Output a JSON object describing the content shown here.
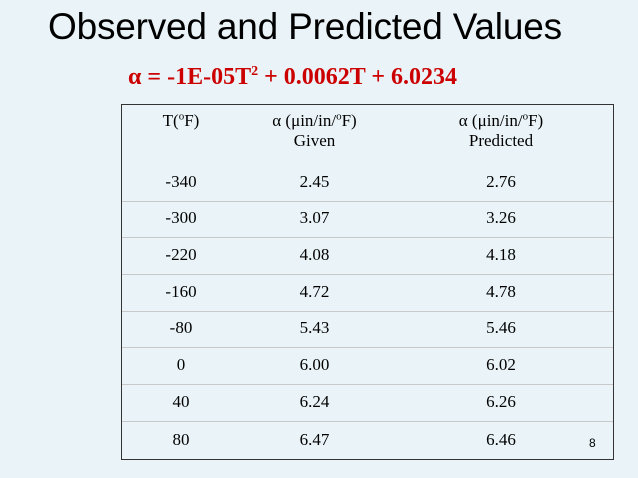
{
  "slide": {
    "title": "Observed and Predicted Values",
    "formula": {
      "prefix": "α = -1E-05T",
      "exponent": "2",
      "suffix": " + 0.0062T + 6.0234",
      "color": "#cc0000"
    },
    "table": {
      "headers": [
        {
          "line1_pre": "T(",
          "sup": "o",
          "line1_post": "F)",
          "line2": ""
        },
        {
          "line1_pre": "α (μin/in/",
          "sup": "o",
          "line1_post": "F)",
          "line2": "Given"
        },
        {
          "line1_pre": "α (μin/in/",
          "sup": "o",
          "line1_post": "F)",
          "line2": "Predicted"
        }
      ],
      "rows": [
        [
          "-340",
          "2.45",
          "2.76"
        ],
        [
          "-300",
          "3.07",
          "3.26"
        ],
        [
          "-220",
          "4.08",
          "4.18"
        ],
        [
          "-160",
          "4.72",
          "4.78"
        ],
        [
          "-80",
          "5.43",
          "5.46"
        ],
        [
          "0",
          "6.00",
          "6.02"
        ],
        [
          "40",
          "6.24",
          "6.26"
        ],
        [
          "80",
          "6.47",
          "6.46"
        ]
      ]
    },
    "page_number": "8"
  }
}
